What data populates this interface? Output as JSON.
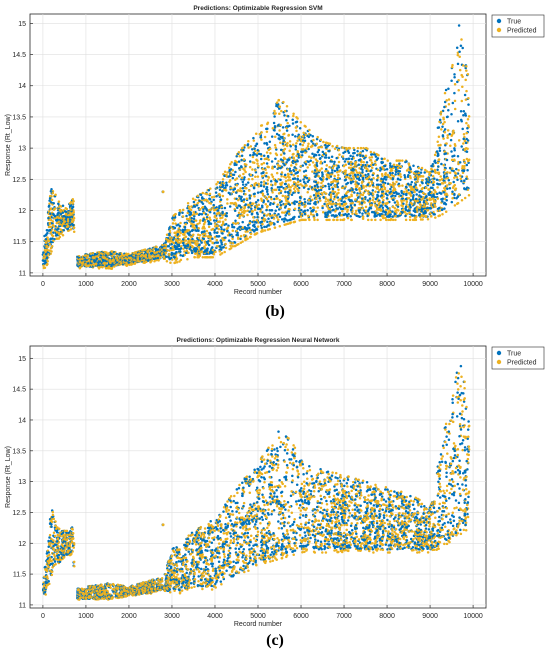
{
  "chart_data": [
    {
      "id": "b",
      "type": "scatter",
      "title": "Predictions: Optimizable Regression SVM",
      "xlabel": "Record number",
      "ylabel": "Response (Rt_Low)",
      "xlim": [
        -300,
        10300
      ],
      "ylim": [
        10.95,
        15.15
      ],
      "xticks": [
        0,
        1000,
        2000,
        3000,
        4000,
        5000,
        6000,
        7000,
        8000,
        9000,
        10000
      ],
      "yticks": [
        11,
        11.5,
        12,
        12.5,
        13,
        13.5,
        14,
        14.5,
        15
      ],
      "ytick_labels": [
        "11",
        "11.5",
        "12",
        "12.5",
        "13",
        "13.5",
        "14",
        "14.5",
        "15"
      ],
      "grid": true,
      "legend_position": "outside-top-right",
      "caption": "(b)",
      "series": [
        {
          "name": "True",
          "color": "#0072bd"
        },
        {
          "name": "Predicted",
          "color": "#edb120"
        }
      ],
      "trend": {
        "x": [
          0,
          100,
          200,
          300,
          400,
          500,
          600,
          700,
          750,
          1000,
          1500,
          2000,
          2500,
          2800,
          3000,
          3500,
          4000,
          4500,
          5000,
          5500,
          6000,
          6500,
          7000,
          7500,
          8000,
          8500,
          9000,
          9300,
          9500,
          9700,
          9900
        ],
        "low": [
          11.1,
          11.2,
          11.4,
          11.6,
          11.6,
          11.7,
          11.7,
          11.8,
          11.1,
          11.1,
          11.1,
          11.15,
          11.2,
          11.25,
          11.2,
          11.3,
          11.3,
          11.5,
          11.7,
          11.8,
          11.9,
          11.9,
          11.9,
          11.9,
          11.9,
          11.9,
          11.9,
          12.0,
          12.1,
          12.2,
          12.3
        ],
        "high": [
          11.5,
          11.9,
          12.5,
          12.2,
          12.1,
          12.1,
          12.1,
          12.2,
          11.25,
          11.3,
          11.35,
          11.3,
          11.4,
          11.45,
          11.9,
          12.2,
          12.4,
          12.9,
          13.3,
          13.8,
          13.4,
          13.1,
          13.0,
          13.0,
          12.8,
          12.8,
          12.6,
          13.8,
          14.3,
          15.1,
          14.0
        ]
      },
      "predicted_spread": 0.85
    },
    {
      "id": "c",
      "type": "scatter",
      "title": "Predictions: Optimizable Regression Neural Network",
      "xlabel": "Record number",
      "ylabel": "Response (Rt_Low)",
      "xlim": [
        -300,
        10300
      ],
      "ylim": [
        10.95,
        15.2
      ],
      "xticks": [
        0,
        1000,
        2000,
        3000,
        4000,
        5000,
        6000,
        7000,
        8000,
        9000,
        10000
      ],
      "yticks": [
        11,
        11.5,
        12,
        12.5,
        13,
        13.5,
        14,
        14.5,
        15
      ],
      "ytick_labels": [
        "11",
        "11.5",
        "12",
        "12.5",
        "13",
        "13.5",
        "14",
        "14.5",
        "15"
      ],
      "grid": true,
      "legend_position": "outside-top-right",
      "caption": "(c)",
      "series": [
        {
          "name": "True",
          "color": "#0072bd"
        },
        {
          "name": "Predicted",
          "color": "#edb120"
        }
      ],
      "trend": {
        "x": [
          0,
          100,
          200,
          300,
          400,
          500,
          600,
          700,
          750,
          1000,
          1500,
          2000,
          2500,
          2800,
          3000,
          3500,
          4000,
          4500,
          5000,
          5500,
          6000,
          6500,
          7000,
          7500,
          8000,
          8500,
          9000,
          9300,
          9500,
          9700,
          9900
        ],
        "low": [
          11.1,
          11.3,
          11.5,
          11.7,
          11.7,
          11.8,
          11.8,
          11.9,
          11.1,
          11.1,
          11.1,
          11.15,
          11.2,
          11.25,
          11.2,
          11.3,
          11.3,
          11.5,
          11.7,
          11.8,
          11.9,
          11.9,
          11.9,
          11.9,
          11.9,
          11.9,
          11.9,
          12.0,
          12.1,
          12.2,
          12.3
        ],
        "high": [
          11.5,
          12.0,
          12.6,
          12.3,
          12.2,
          12.2,
          12.2,
          12.3,
          11.25,
          11.3,
          11.35,
          11.3,
          11.4,
          11.45,
          11.9,
          12.2,
          12.4,
          12.9,
          13.3,
          13.9,
          13.4,
          13.2,
          13.1,
          13.0,
          12.9,
          12.8,
          12.6,
          13.8,
          14.3,
          15.15,
          14.1
        ]
      },
      "predicted_spread": 0.35
    }
  ]
}
